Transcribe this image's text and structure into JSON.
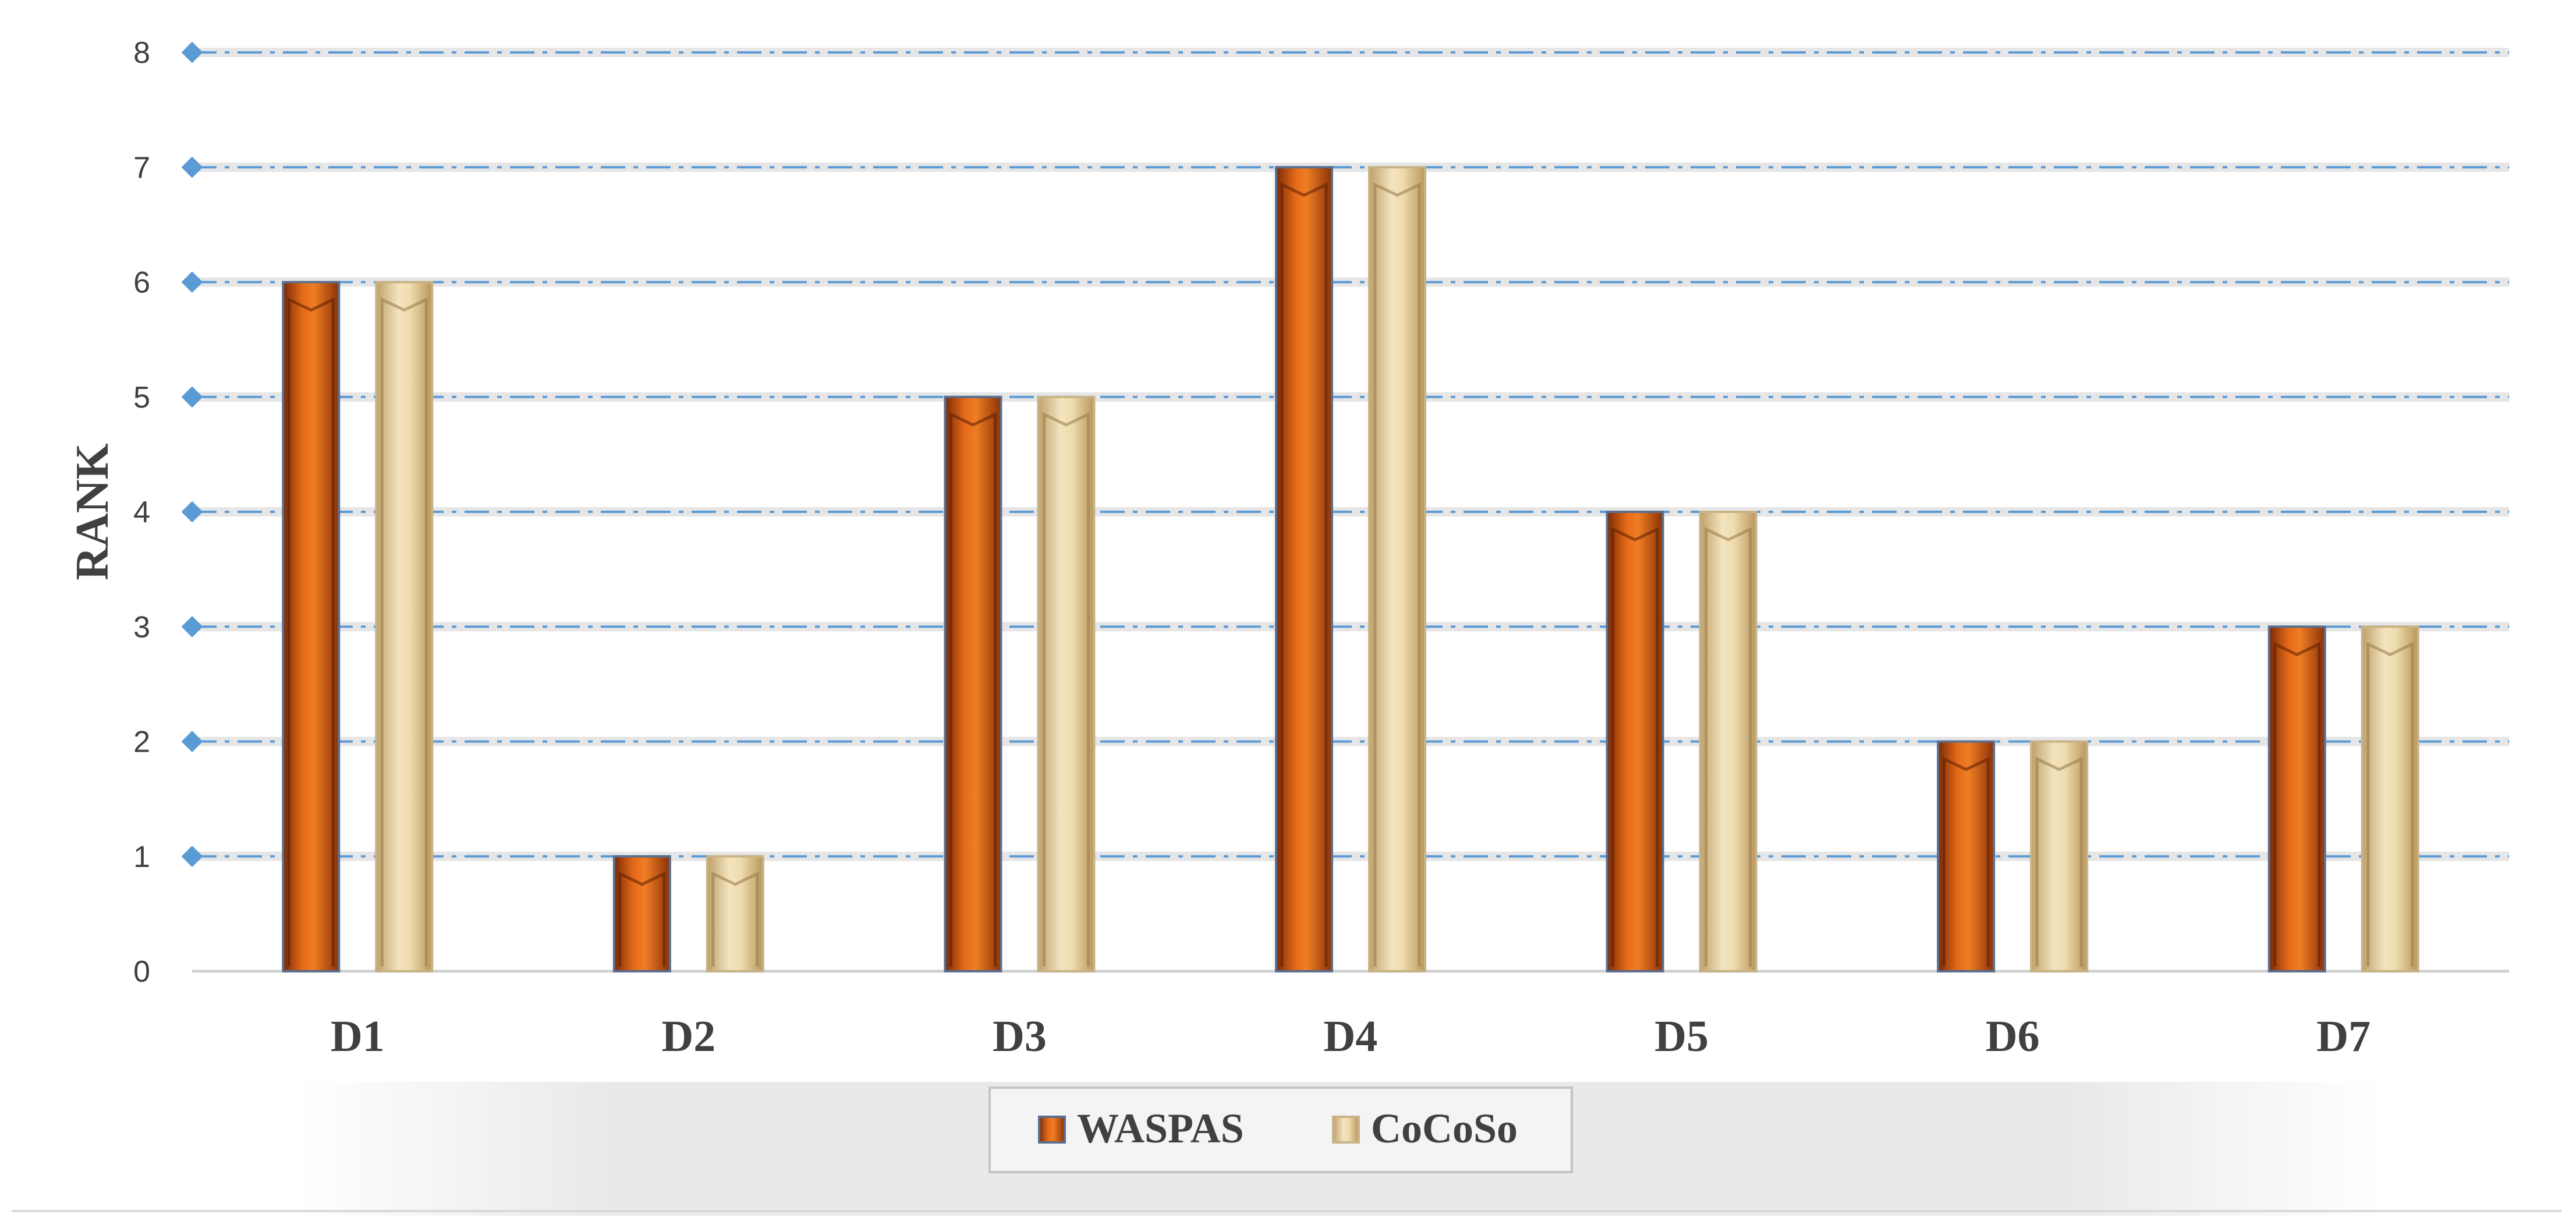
{
  "chart_data": {
    "type": "bar",
    "title": "",
    "xlabel": "",
    "ylabel": "RANK",
    "ylim": [
      0,
      8
    ],
    "yticks": [
      0,
      1,
      2,
      3,
      4,
      5,
      6,
      7,
      8
    ],
    "categories": [
      "D1",
      "D2",
      "D3",
      "D4",
      "D5",
      "D6",
      "D7"
    ],
    "series": [
      {
        "name": "WASPAS",
        "values": [
          6,
          1,
          5,
          7,
          4,
          2,
          3
        ],
        "color": "#C8500F"
      },
      {
        "name": "CoCoSo",
        "values": [
          6,
          1,
          5,
          7,
          4,
          2,
          3
        ],
        "color": "#E6CF9A"
      }
    ],
    "grid": true,
    "legend_position": "bottom"
  }
}
